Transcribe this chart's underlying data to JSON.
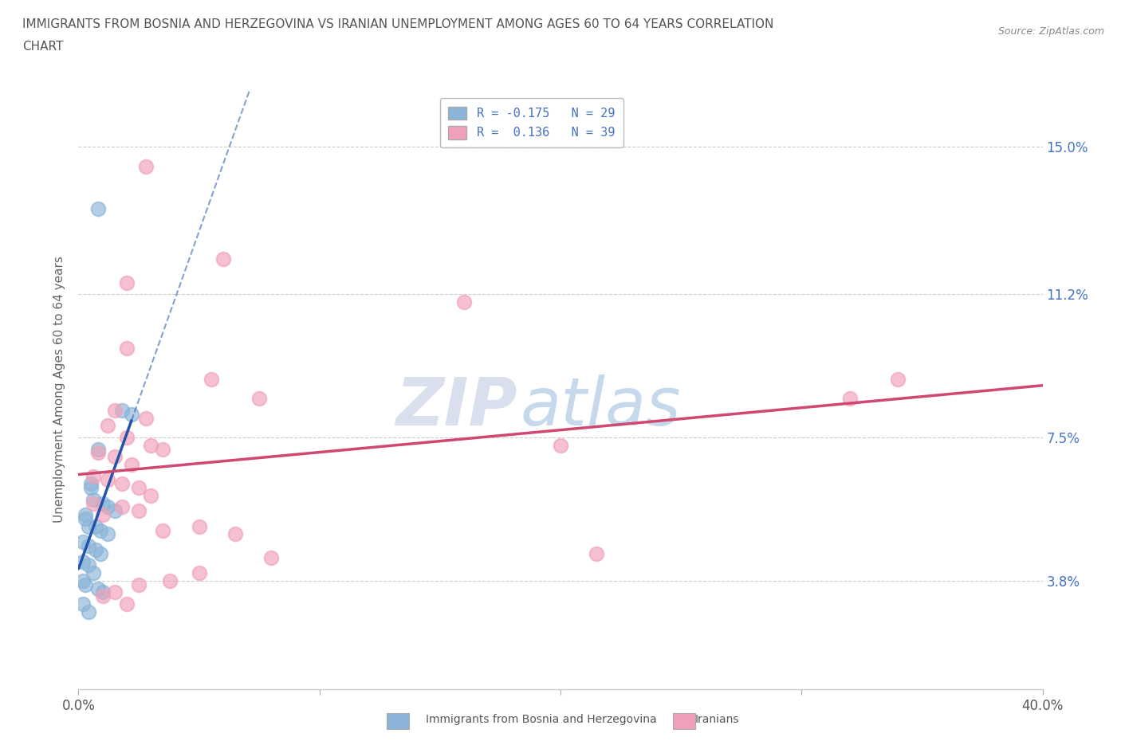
{
  "title_line1": "IMMIGRANTS FROM BOSNIA AND HERZEGOVINA VS IRANIAN UNEMPLOYMENT AMONG AGES 60 TO 64 YEARS CORRELATION",
  "title_line2": "CHART",
  "source_text": "Source: ZipAtlas.com",
  "ylabel": "Unemployment Among Ages 60 to 64 years",
  "xlim": [
    0.0,
    0.4
  ],
  "ylim": [
    0.01,
    0.165
  ],
  "yticks": [
    0.038,
    0.075,
    0.112,
    0.15
  ],
  "ytick_labels": [
    "3.8%",
    "7.5%",
    "11.2%",
    "15.0%"
  ],
  "xticks": [
    0.0,
    0.1,
    0.2,
    0.3,
    0.4
  ],
  "xtick_labels": [
    "0.0%",
    "",
    "",
    "",
    "40.0%"
  ],
  "blue_color": "#8ab4d8",
  "pink_color": "#f0a0b8",
  "blue_line_color": "#2255aa",
  "pink_line_color": "#d04870",
  "background_color": "#ffffff",
  "blue_scatter": [
    [
      0.008,
      0.134
    ],
    [
      0.018,
      0.082
    ],
    [
      0.022,
      0.081
    ],
    [
      0.008,
      0.072
    ],
    [
      0.005,
      0.063
    ],
    [
      0.005,
      0.062
    ],
    [
      0.006,
      0.059
    ],
    [
      0.01,
      0.058
    ],
    [
      0.012,
      0.057
    ],
    [
      0.015,
      0.056
    ],
    [
      0.003,
      0.055
    ],
    [
      0.003,
      0.054
    ],
    [
      0.004,
      0.052
    ],
    [
      0.007,
      0.052
    ],
    [
      0.009,
      0.051
    ],
    [
      0.012,
      0.05
    ],
    [
      0.002,
      0.048
    ],
    [
      0.004,
      0.047
    ],
    [
      0.007,
      0.046
    ],
    [
      0.009,
      0.045
    ],
    [
      0.002,
      0.043
    ],
    [
      0.004,
      0.042
    ],
    [
      0.006,
      0.04
    ],
    [
      0.002,
      0.038
    ],
    [
      0.003,
      0.037
    ],
    [
      0.008,
      0.036
    ],
    [
      0.01,
      0.035
    ],
    [
      0.002,
      0.032
    ],
    [
      0.004,
      0.03
    ]
  ],
  "pink_scatter": [
    [
      0.028,
      0.145
    ],
    [
      0.06,
      0.121
    ],
    [
      0.02,
      0.115
    ],
    [
      0.16,
      0.11
    ],
    [
      0.02,
      0.098
    ],
    [
      0.055,
      0.09
    ],
    [
      0.075,
      0.085
    ],
    [
      0.015,
      0.082
    ],
    [
      0.028,
      0.08
    ],
    [
      0.012,
      0.078
    ],
    [
      0.02,
      0.075
    ],
    [
      0.03,
      0.073
    ],
    [
      0.035,
      0.072
    ],
    [
      0.008,
      0.071
    ],
    [
      0.015,
      0.07
    ],
    [
      0.022,
      0.068
    ],
    [
      0.006,
      0.065
    ],
    [
      0.012,
      0.064
    ],
    [
      0.018,
      0.063
    ],
    [
      0.025,
      0.062
    ],
    [
      0.03,
      0.06
    ],
    [
      0.006,
      0.058
    ],
    [
      0.018,
      0.057
    ],
    [
      0.025,
      0.056
    ],
    [
      0.01,
      0.055
    ],
    [
      0.05,
      0.052
    ],
    [
      0.035,
      0.051
    ],
    [
      0.065,
      0.05
    ],
    [
      0.08,
      0.044
    ],
    [
      0.05,
      0.04
    ],
    [
      0.038,
      0.038
    ],
    [
      0.025,
      0.037
    ],
    [
      0.015,
      0.035
    ],
    [
      0.01,
      0.034
    ],
    [
      0.02,
      0.032
    ],
    [
      0.32,
      0.085
    ],
    [
      0.2,
      0.073
    ],
    [
      0.34,
      0.09
    ],
    [
      0.215,
      0.045
    ]
  ],
  "watermark_zip_color": "#d0d8e8",
  "watermark_atlas_color": "#b8d0e8"
}
